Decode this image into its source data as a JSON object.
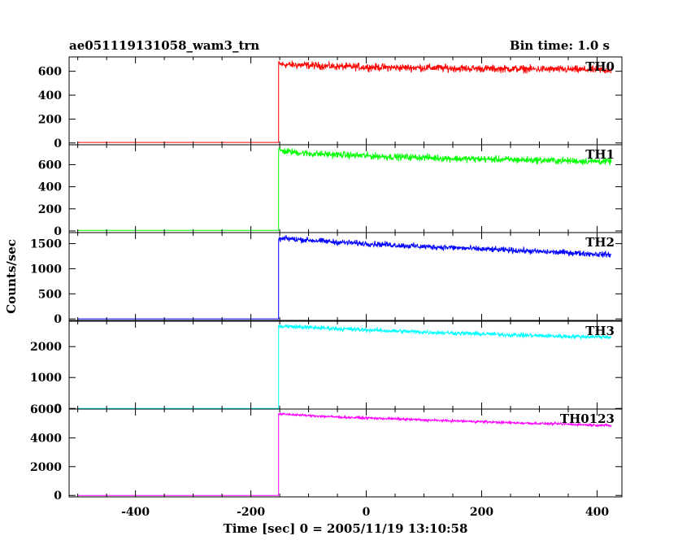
{
  "chart_data": {
    "type": "line",
    "title": "ae051119131058_wam3_trn",
    "subtitle": "Bin time: 1.0 s",
    "xlabel": "Time [sec] 0 = 2005/11/19 13:10:58",
    "ylabel": "Counts/sec",
    "xlim": [
      -515,
      443
    ],
    "xticks": [
      -400,
      -200,
      0,
      200,
      400
    ],
    "grid": false,
    "burst_onset": -152,
    "data_end": 425,
    "panels": [
      {
        "name": "TH0",
        "color": "#ff0000",
        "ylim": [
          -15,
          720
        ],
        "yticks": [
          0,
          200,
          400,
          600
        ],
        "baseline": 5,
        "x": [
          -152,
          -140,
          -100,
          -50,
          0,
          50,
          100,
          150,
          200,
          250,
          300,
          350,
          400,
          425
        ],
        "y": [
          660,
          655,
          650,
          640,
          635,
          630,
          630,
          625,
          622,
          620,
          618,
          615,
          612,
          610
        ],
        "noise": 22
      },
      {
        "name": "TH1",
        "color": "#00ff00",
        "ylim": [
          -15,
          780
        ],
        "yticks": [
          0,
          200,
          400,
          600
        ],
        "baseline": 5,
        "x": [
          -152,
          -140,
          -100,
          -50,
          0,
          50,
          100,
          150,
          200,
          250,
          300,
          350,
          400,
          425
        ],
        "y": [
          730,
          720,
          700,
          690,
          680,
          670,
          665,
          655,
          650,
          645,
          640,
          635,
          630,
          628
        ],
        "noise": 22
      },
      {
        "name": "TH2",
        "color": "#0000ff",
        "ylim": [
          -30,
          1720
        ],
        "yticks": [
          0,
          500,
          1000,
          1500
        ],
        "baseline": 0,
        "x": [
          -152,
          -140,
          -100,
          -50,
          0,
          50,
          100,
          150,
          200,
          250,
          300,
          350,
          400,
          425
        ],
        "y": [
          1580,
          1600,
          1570,
          1530,
          1500,
          1470,
          1440,
          1420,
          1390,
          1370,
          1340,
          1320,
          1290,
          1280
        ],
        "noise": 40
      },
      {
        "name": "TH3",
        "color": "#00ffff",
        "ylim": [
          -20,
          2820
        ],
        "yticks": [
          0,
          1000,
          2000
        ],
        "baseline": 0,
        "x": [
          -152,
          -140,
          -100,
          -50,
          0,
          50,
          100,
          150,
          200,
          250,
          300,
          350,
          400,
          425
        ],
        "y": [
          2650,
          2660,
          2620,
          2580,
          2540,
          2500,
          2470,
          2440,
          2410,
          2380,
          2350,
          2330,
          2320,
          2310
        ],
        "noise": 50
      },
      {
        "name": "TH0123",
        "color": "#ff00ff",
        "ylim": [
          -100,
          6000
        ],
        "yticks": [
          0,
          2000,
          4000,
          6000
        ],
        "baseline": 0,
        "x": [
          -152,
          -140,
          -100,
          -50,
          0,
          50,
          100,
          150,
          200,
          250,
          300,
          350,
          400,
          425
        ],
        "y": [
          5650,
          5640,
          5550,
          5450,
          5380,
          5320,
          5240,
          5180,
          5120,
          5050,
          5000,
          4950,
          4880,
          4850
        ],
        "noise": 60
      }
    ]
  }
}
